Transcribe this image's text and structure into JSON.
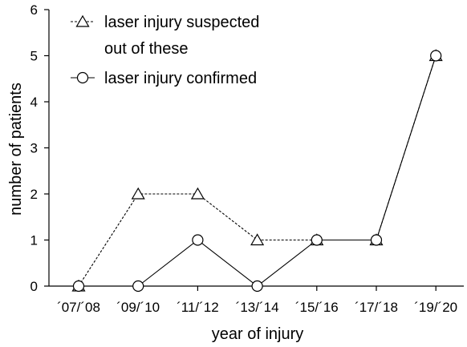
{
  "chart_data": {
    "type": "line",
    "categories": [
      "´07/´08",
      "´09/´10",
      "´11/´12",
      "´13/´14",
      "´15/´16",
      "´17/´18",
      "´19/´20"
    ],
    "series": [
      {
        "name": "laser injury suspected",
        "values": [
          0,
          2,
          2,
          1,
          1,
          1,
          5
        ],
        "marker": "triangle",
        "line_style": "dashed",
        "color": "#000000"
      },
      {
        "name": "laser injury confirmed",
        "values": [
          0,
          0,
          1,
          0,
          1,
          1,
          5
        ],
        "marker": "circle",
        "line_style": "solid",
        "color": "#000000"
      }
    ],
    "legend_note": "out of these",
    "xlabel": "year of injury",
    "ylabel": "number of patients",
    "ylim": [
      0,
      6
    ],
    "yticks": [
      0,
      1,
      2,
      3,
      4,
      5,
      6
    ],
    "grid": false,
    "legend_position": "top-left"
  }
}
